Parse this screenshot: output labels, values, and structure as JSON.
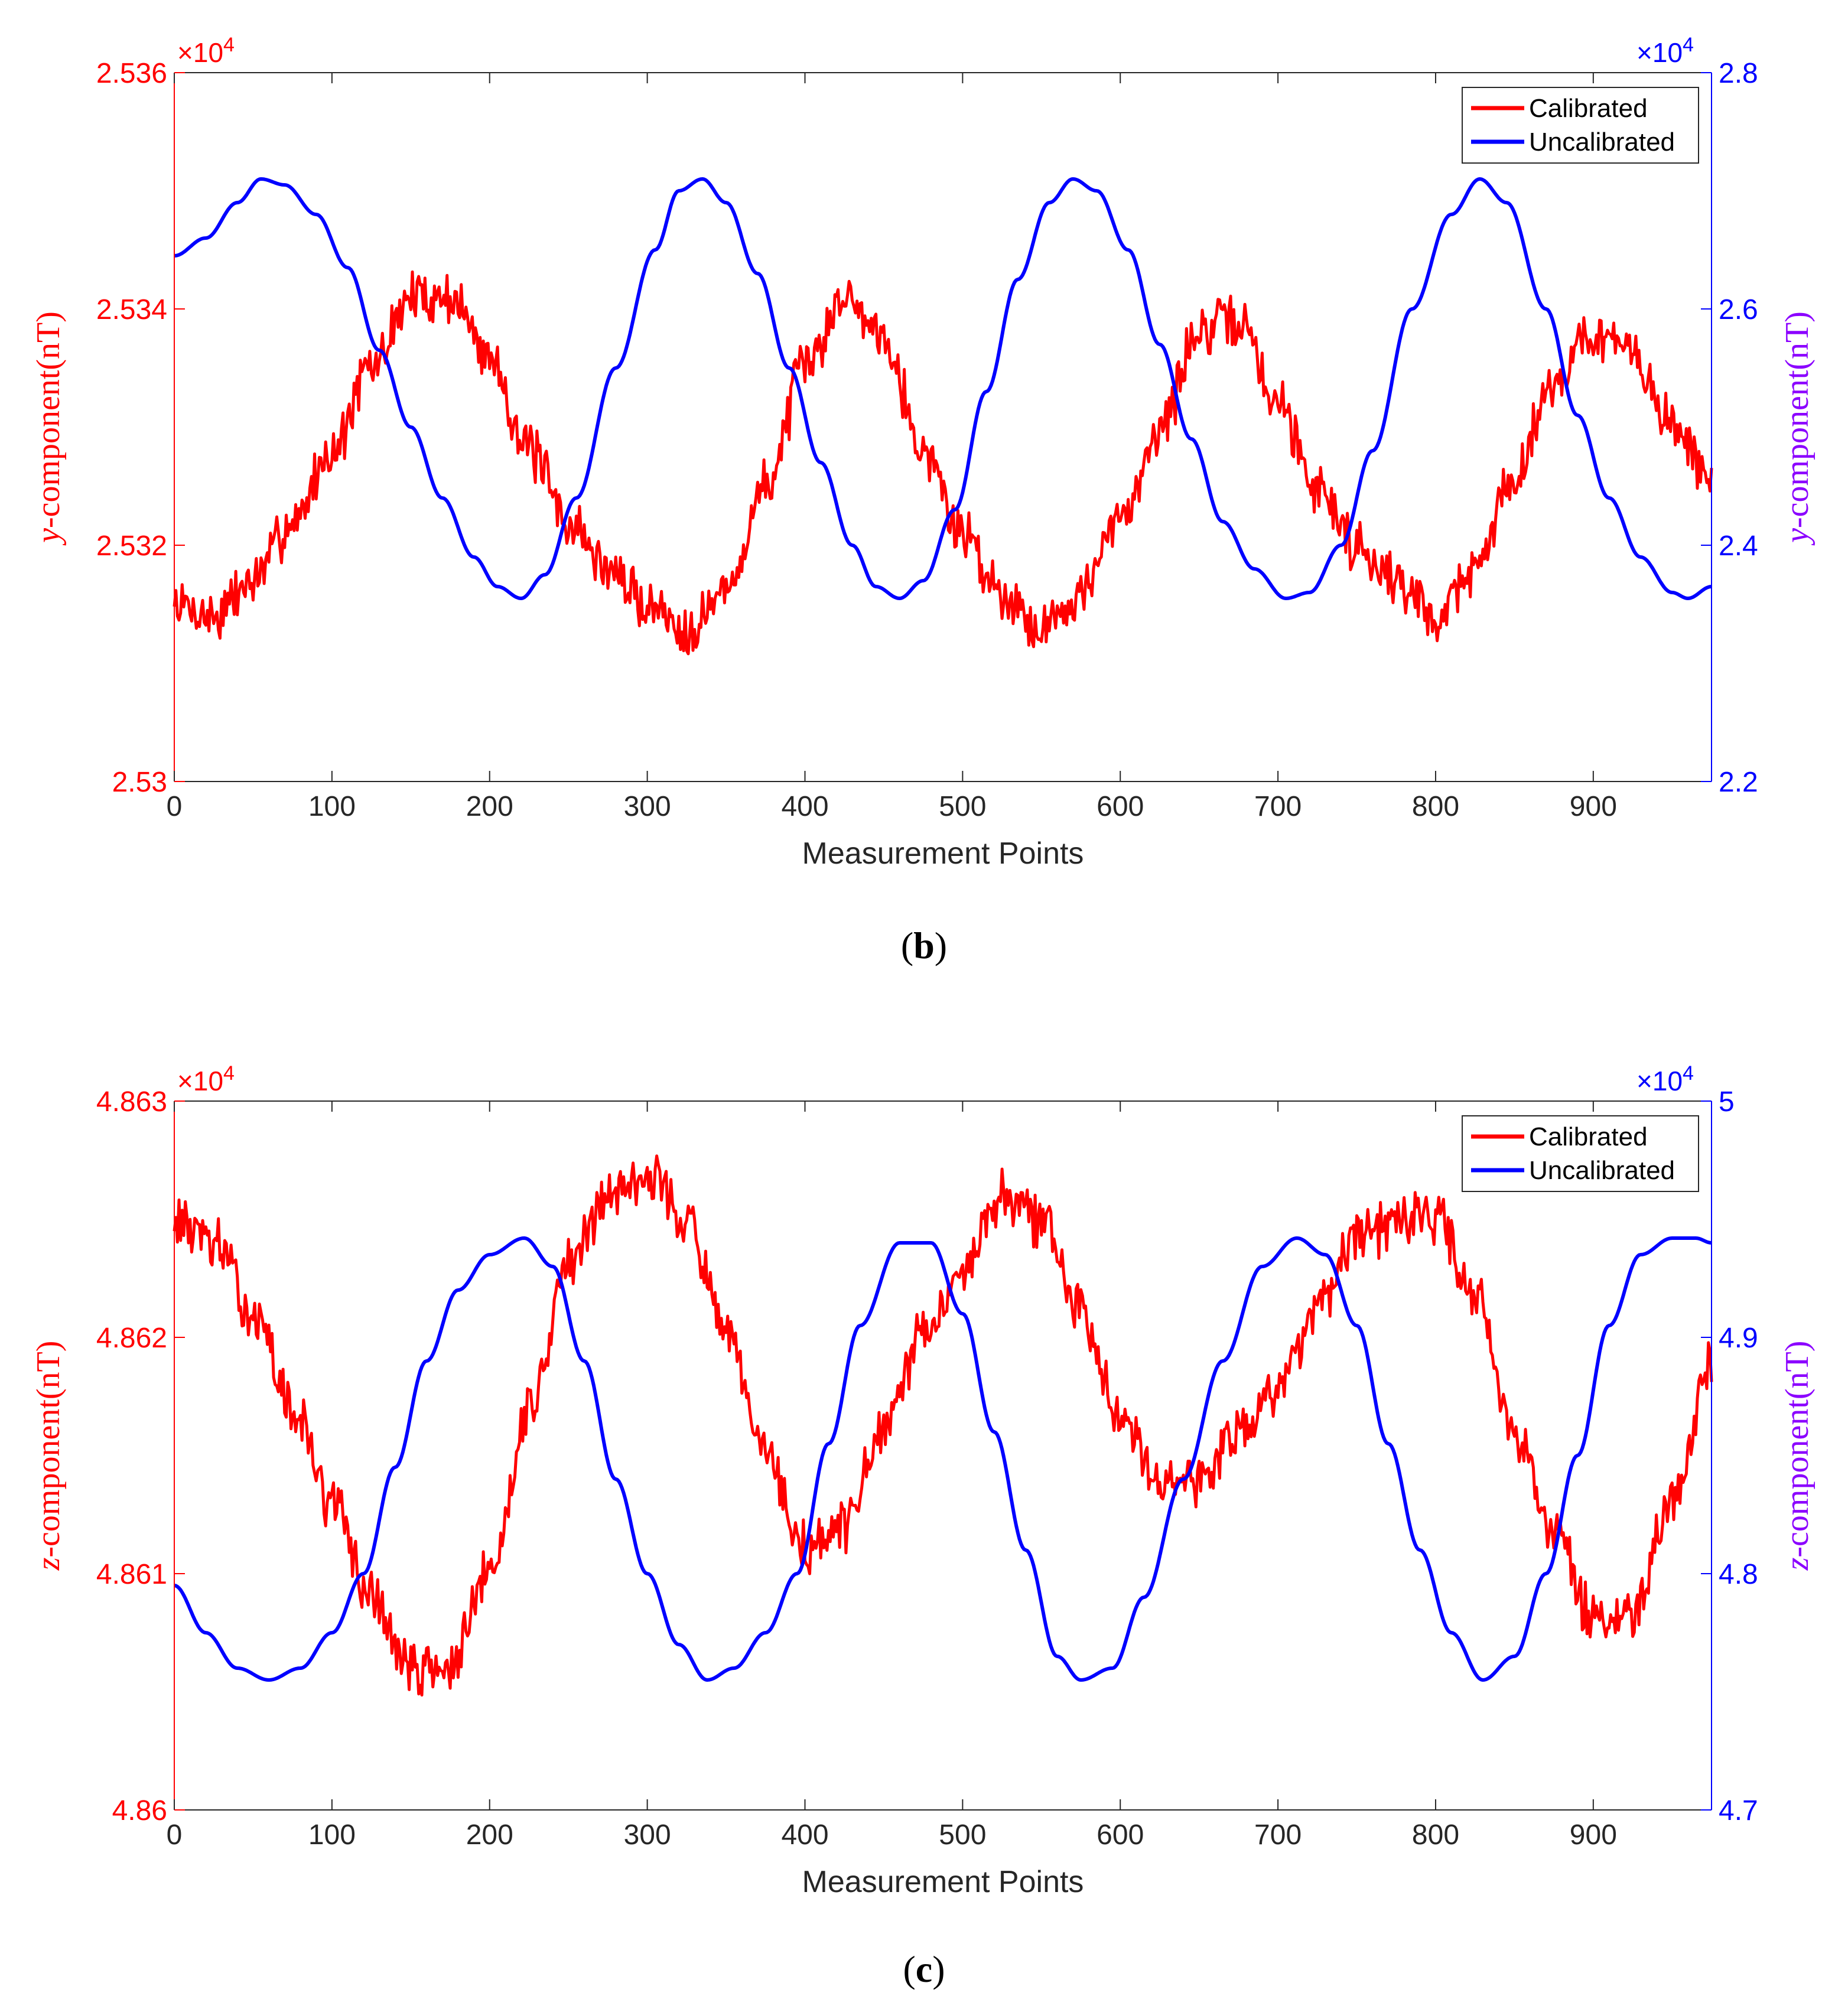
{
  "colors": {
    "calibrated": "#ff0000",
    "uncalibrated": "#0000ff",
    "xaxis": "#262626",
    "frame": "#262626"
  },
  "chart_data": [
    {
      "type": "line",
      "panel": "b",
      "caption_letter": "b",
      "xlabel": "Measurement Points",
      "ylabel_left_var": "y",
      "ylabel_left_rest": "-component(nT)",
      "ylabel_right_var": "y",
      "ylabel_right_rest": "-component(nT)",
      "exponent_left": "×10",
      "exponent_left_sup": "4",
      "exponent_right": "×10",
      "exponent_right_sup": "4",
      "xlim": [
        0,
        975
      ],
      "xticks": [
        0,
        100,
        200,
        300,
        400,
        500,
        600,
        700,
        800,
        900
      ],
      "xtick_labels": [
        "0",
        "100",
        "200",
        "300",
        "400",
        "500",
        "600",
        "700",
        "800",
        "900"
      ],
      "ylim_left": [
        2.53,
        2.536
      ],
      "yticks_left": [
        2.53,
        2.532,
        2.534,
        2.536
      ],
      "ytick_labels_left": [
        "2.53",
        "2.532",
        "2.534",
        "2.536"
      ],
      "ylim_right": [
        2.2,
        2.8
      ],
      "yticks_right": [
        2.2,
        2.4,
        2.6,
        2.8
      ],
      "ytick_labels_right": [
        "2.2",
        "2.4",
        "2.6",
        "2.8"
      ],
      "legend": [
        "Calibrated",
        "Uncalibrated"
      ],
      "series": [
        {
          "name": "Calibrated",
          "axis": "left",
          "x": [
            0,
            25,
            50,
            75,
            100,
            125,
            150,
            175,
            200,
            225,
            250,
            275,
            300,
            325,
            350,
            375,
            400,
            425,
            450,
            475,
            500,
            525,
            550,
            575,
            600,
            625,
            650,
            675,
            700,
            725,
            750,
            775,
            800,
            825,
            850,
            875,
            900,
            925,
            950,
            975
          ],
          "y": [
            2.5315,
            2.5314,
            2.5317,
            2.5322,
            2.5328,
            2.5335,
            2.5341,
            2.5341,
            2.5336,
            2.5328,
            2.5322,
            2.5318,
            2.5315,
            2.5313,
            2.5316,
            2.5325,
            2.5335,
            2.5341,
            2.5338,
            2.5328,
            2.5321,
            2.5316,
            2.5313,
            2.5316,
            2.5322,
            2.533,
            2.5338,
            2.5339,
            2.5332,
            2.5325,
            2.532,
            2.5317,
            2.5314,
            2.5318,
            2.5326,
            2.5334,
            2.5338,
            2.5336,
            2.533,
            2.5326
          ]
        },
        {
          "name": "Uncalibrated",
          "axis": "right",
          "x": [
            0,
            20,
            40,
            55,
            70,
            90,
            110,
            130,
            150,
            170,
            190,
            205,
            220,
            235,
            255,
            280,
            305,
            320,
            335,
            350,
            370,
            390,
            410,
            430,
            445,
            460,
            475,
            495,
            515,
            535,
            555,
            570,
            585,
            605,
            625,
            645,
            665,
            685,
            705,
            720,
            740,
            760,
            785,
            810,
            828,
            845,
            870,
            890,
            910,
            930,
            950,
            960,
            975
          ],
          "y": [
            2.645,
            2.66,
            2.69,
            2.71,
            2.705,
            2.68,
            2.635,
            2.565,
            2.5,
            2.44,
            2.39,
            2.365,
            2.355,
            2.375,
            2.44,
            2.55,
            2.65,
            2.7,
            2.71,
            2.69,
            2.63,
            2.55,
            2.47,
            2.4,
            2.365,
            2.355,
            2.37,
            2.43,
            2.53,
            2.625,
            2.69,
            2.71,
            2.7,
            2.65,
            2.57,
            2.49,
            2.42,
            2.38,
            2.355,
            2.36,
            2.4,
            2.48,
            2.6,
            2.68,
            2.71,
            2.69,
            2.6,
            2.51,
            2.44,
            2.39,
            2.36,
            2.355,
            2.365
          ]
        }
      ]
    },
    {
      "type": "line",
      "panel": "c",
      "caption_letter": "c",
      "xlabel": "Measurement Points",
      "ylabel_left_var": "z",
      "ylabel_left_rest": "-component(nT)",
      "ylabel_right_var": "z",
      "ylabel_right_rest": "-component(nT)",
      "exponent_left": "×10",
      "exponent_left_sup": "4",
      "exponent_right": "×10",
      "exponent_right_sup": "4",
      "xlim": [
        0,
        975
      ],
      "xticks": [
        0,
        100,
        200,
        300,
        400,
        500,
        600,
        700,
        800,
        900
      ],
      "xtick_labels": [
        "0",
        "100",
        "200",
        "300",
        "400",
        "500",
        "600",
        "700",
        "800",
        "900"
      ],
      "ylim_left": [
        4.86,
        4.863
      ],
      "yticks_left": [
        4.86,
        4.861,
        4.862,
        4.863
      ],
      "ytick_labels_left": [
        "4.86",
        "4.861",
        "4.862",
        "4.863"
      ],
      "ylim_right": [
        4.7,
        5
      ],
      "yticks_right": [
        4.7,
        4.8,
        4.9,
        5
      ],
      "ytick_labels_right": [
        "4.7",
        "4.8",
        "4.9",
        "5"
      ],
      "legend": [
        "Calibrated",
        "Uncalibrated"
      ],
      "series": [
        {
          "name": "Calibrated",
          "axis": "left",
          "x": [
            0,
            25,
            50,
            75,
            100,
            125,
            150,
            175,
            200,
            225,
            250,
            275,
            300,
            325,
            350,
            375,
            400,
            425,
            450,
            475,
            500,
            525,
            550,
            575,
            600,
            625,
            650,
            675,
            700,
            725,
            750,
            775,
            800,
            825,
            850,
            875,
            900,
            925,
            950,
            975
          ],
          "y": [
            4.8625,
            4.8624,
            4.8621,
            4.8617,
            4.8613,
            4.8609,
            4.8606,
            4.8606,
            4.861,
            4.8617,
            4.8623,
            4.8626,
            4.8627,
            4.8625,
            4.862,
            4.8615,
            4.8611,
            4.8612,
            4.8616,
            4.862,
            4.8623,
            4.8626,
            4.8625,
            4.8621,
            4.8617,
            4.8614,
            4.8614,
            4.8616,
            4.8618,
            4.8621,
            4.8624,
            4.8625,
            4.8625,
            4.8622,
            4.8616,
            4.8612,
            4.8608,
            4.8608,
            4.8613,
            4.8619
          ]
        },
        {
          "name": "Uncalibrated",
          "axis": "right",
          "x": [
            0,
            20,
            40,
            60,
            80,
            100,
            120,
            140,
            160,
            180,
            200,
            222,
            240,
            260,
            280,
            300,
            320,
            338,
            355,
            375,
            395,
            415,
            435,
            460,
            480,
            500,
            520,
            540,
            560,
            575,
            595,
            615,
            640,
            665,
            690,
            712,
            730,
            750,
            770,
            790,
            810,
            830,
            850,
            870,
            890,
            910,
            930,
            950,
            965,
            975
          ],
          "y": [
            4.795,
            4.775,
            4.76,
            4.755,
            4.76,
            4.775,
            4.8,
            4.845,
            4.89,
            4.92,
            4.935,
            4.942,
            4.93,
            4.89,
            4.84,
            4.8,
            4.77,
            4.755,
            4.76,
            4.775,
            4.8,
            4.855,
            4.905,
            4.94,
            4.94,
            4.91,
            4.86,
            4.81,
            4.765,
            4.755,
            4.76,
            4.79,
            4.84,
            4.89,
            4.93,
            4.942,
            4.935,
            4.905,
            4.855,
            4.81,
            4.775,
            4.755,
            4.765,
            4.8,
            4.85,
            4.905,
            4.935,
            4.942,
            4.942,
            4.94
          ]
        }
      ]
    }
  ]
}
